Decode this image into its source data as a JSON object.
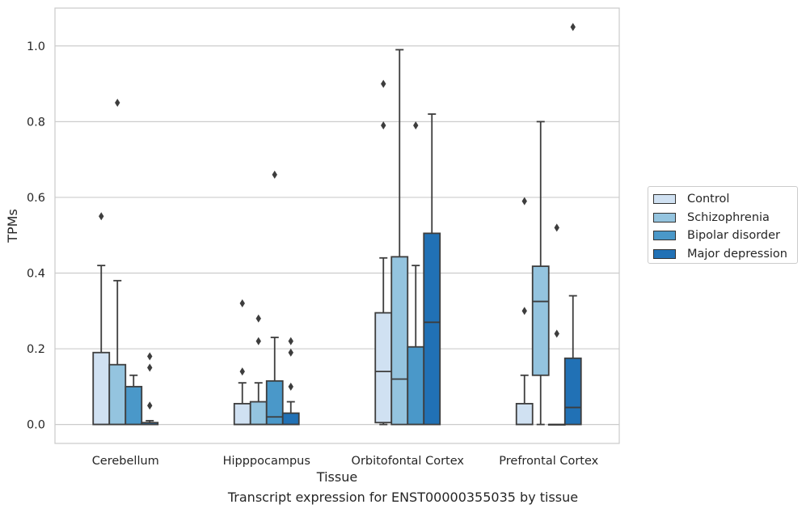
{
  "caption": "Transcript expression for ENST00000355035 by tissue",
  "chart_data": {
    "type": "box",
    "xlabel": "Tissue",
    "ylabel": "TPMs",
    "ylim": [
      -0.05,
      1.1
    ],
    "yticks": [
      "0.0",
      "0.2",
      "0.4",
      "0.6",
      "0.8",
      "1.0"
    ],
    "grid": "horizontal",
    "legend_position": "right",
    "categories": [
      "Cerebellum",
      "Hipppocampus",
      "Orbitofontal Cortex",
      "Prefrontal Cortex"
    ],
    "series": [
      {
        "name": "Control",
        "color": "#d0e1f2",
        "boxes": [
          {
            "min": 0.0,
            "q1": 0.0,
            "median": 0.0,
            "q3": 0.19,
            "max": 0.42,
            "outliers": [
              0.55
            ]
          },
          {
            "min": 0.0,
            "q1": 0.0,
            "median": 0.0,
            "q3": 0.055,
            "max": 0.11,
            "outliers": [
              0.14,
              0.32
            ]
          },
          {
            "min": 0.0,
            "q1": 0.005,
            "median": 0.14,
            "q3": 0.295,
            "max": 0.44,
            "outliers": [
              0.79,
              0.9
            ]
          },
          {
            "min": 0.0,
            "q1": 0.0,
            "median": 0.0,
            "q3": 0.055,
            "max": 0.13,
            "outliers": [
              0.3,
              0.59
            ]
          }
        ]
      },
      {
        "name": "Schizophrenia",
        "color": "#94c4df",
        "boxes": [
          {
            "min": 0.0,
            "q1": 0.0,
            "median": 0.0,
            "q3": 0.158,
            "max": 0.38,
            "outliers": [
              0.85
            ]
          },
          {
            "min": 0.0,
            "q1": 0.0,
            "median": 0.0,
            "q3": 0.06,
            "max": 0.11,
            "outliers": [
              0.22,
              0.28
            ]
          },
          {
            "min": 0.0,
            "q1": 0.0,
            "median": 0.12,
            "q3": 0.443,
            "max": 0.99,
            "outliers": []
          },
          {
            "min": 0.0,
            "q1": 0.13,
            "median": 0.325,
            "q3": 0.418,
            "max": 0.8,
            "outliers": []
          }
        ]
      },
      {
        "name": "Bipolar disorder",
        "color": "#4a98c9",
        "boxes": [
          {
            "min": 0.0,
            "q1": 0.0,
            "median": 0.0,
            "q3": 0.1,
            "max": 0.13,
            "outliers": []
          },
          {
            "min": 0.0,
            "q1": 0.0,
            "median": 0.02,
            "q3": 0.115,
            "max": 0.23,
            "outliers": [
              0.66
            ]
          },
          {
            "min": 0.0,
            "q1": 0.0,
            "median": 0.0,
            "q3": 0.205,
            "max": 0.42,
            "outliers": [
              0.79
            ]
          },
          {
            "min": 0.0,
            "q1": 0.0,
            "median": 0.0,
            "q3": 0.0,
            "max": 0.0,
            "outliers": [
              0.24,
              0.52
            ]
          }
        ]
      },
      {
        "name": "Major depression",
        "color": "#2171b5",
        "boxes": [
          {
            "min": 0.0,
            "q1": 0.0,
            "median": 0.0,
            "q3": 0.005,
            "max": 0.01,
            "outliers": [
              0.05,
              0.15,
              0.18
            ]
          },
          {
            "min": 0.0,
            "q1": 0.0,
            "median": 0.0,
            "q3": 0.03,
            "max": 0.06,
            "outliers": [
              0.1,
              0.19,
              0.22
            ]
          },
          {
            "min": 0.0,
            "q1": 0.0,
            "median": 0.27,
            "q3": 0.505,
            "max": 0.82,
            "outliers": []
          },
          {
            "min": 0.0,
            "q1": 0.0,
            "median": 0.045,
            "q3": 0.175,
            "max": 0.34,
            "outliers": [
              1.05
            ]
          }
        ]
      }
    ]
  }
}
